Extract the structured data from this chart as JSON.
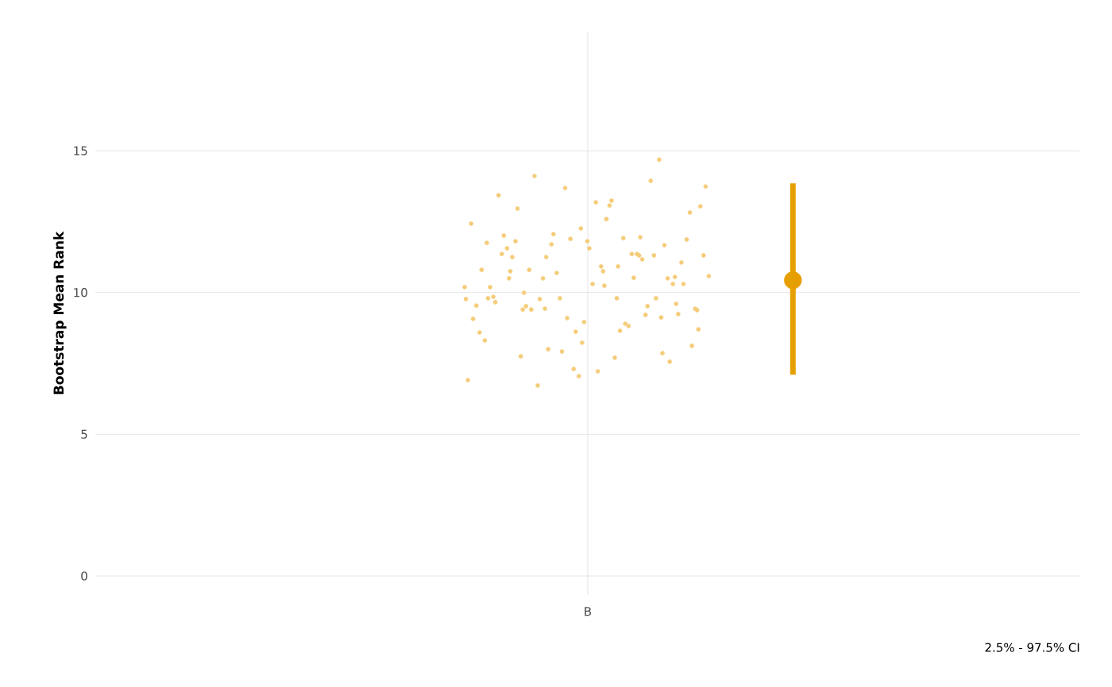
{
  "chart_data": {
    "type": "scatter",
    "ylabel": "Bootstrap Mean Rank",
    "categories": [
      "B"
    ],
    "ylim": [
      -0.67,
      19.2
    ],
    "yticks": [
      0,
      5,
      10,
      15
    ],
    "grid": true,
    "annotations": [
      "2.5% - 97.5% CI"
    ],
    "series": [
      {
        "color": "#f4cc7a",
        "x": [
          "B",
          "B",
          "B",
          "B",
          "B",
          "B",
          "B",
          "B",
          "B",
          "B",
          "B",
          "B",
          "B",
          "B",
          "B",
          "B",
          "B",
          "B",
          "B",
          "B",
          "B",
          "B",
          "B",
          "B",
          "B",
          "B",
          "B",
          "B",
          "B",
          "B",
          "B",
          "B",
          "B",
          "B",
          "B",
          "B",
          "B",
          "B",
          "B",
          "B",
          "B",
          "B",
          "B",
          "B",
          "B",
          "B",
          "B",
          "B",
          "B",
          "B",
          "B",
          "B",
          "B",
          "B",
          "B",
          "B",
          "B",
          "B",
          "B",
          "B",
          "B",
          "B",
          "B",
          "B",
          "B",
          "B",
          "B",
          "B",
          "B",
          "B",
          "B",
          "B",
          "B",
          "B",
          "B",
          "B",
          "B",
          "B",
          "B",
          "B",
          "B",
          "B",
          "B",
          "B",
          "B",
          "B",
          "B",
          "B",
          "B",
          "B",
          "B",
          "B",
          "B",
          "B",
          "B",
          "B",
          "B",
          "B",
          "B",
          "B",
          "B"
        ],
        "values": [
          10.19,
          9.8,
          9.4,
          10.55,
          12.26,
          11.75,
          11.31,
          9.43,
          9.38,
          10.75,
          10.5,
          9.12,
          9.1,
          9.07,
          8.9,
          9.4,
          10.3,
          11.56,
          9.66,
          9.52,
          12.06,
          13.74,
          13.24,
          12.96,
          7.56,
          8.62,
          10.8,
          10.52,
          9.77,
          8.12,
          7.22,
          12.01,
          9.8,
          7.92,
          6.91,
          8.65,
          9.52,
          9.24,
          8.96,
          10.19,
          11.17,
          8.0,
          13.04,
          12.59,
          11.25,
          11.67,
          11.89,
          9.54,
          8.82,
          14.11,
          11.87,
          10.3,
          13.43,
          13.94,
          10.69,
          10.58,
          7.7,
          7.75,
          10.3,
          7.05,
          8.31,
          11.36,
          10.5,
          9.43,
          10.92,
          11.56,
          14.69,
          13.69,
          12.43,
          11.92,
          10.8,
          11.06,
          11.81,
          9.85,
          9.21,
          11.7,
          11.31,
          13.07,
          11.81,
          10.5,
          7.3,
          8.59,
          11.36,
          6.72,
          12.82,
          13.18,
          11.36,
          11.31,
          9.8,
          9.77,
          10.92,
          9.99,
          9.6,
          8.23,
          9.8,
          11.95,
          11.25,
          8.7,
          10.24,
          10.75,
          7.86
        ]
      },
      {
        "color": "#e69f00",
        "x": [
          "B"
        ],
        "values": [
          10.43
        ],
        "errors": [
          [
            7.1,
            13.85
          ]
        ]
      }
    ]
  }
}
